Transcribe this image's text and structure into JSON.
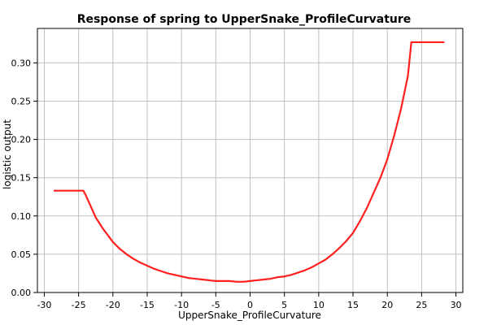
{
  "chart_data": {
    "type": "line",
    "title": "Response of spring to UpperSnake_ProfileCurvature",
    "xlabel": "UpperSnake_ProfileCurvature",
    "ylabel": "logistic output",
    "xlim": [
      -31,
      31
    ],
    "ylim": [
      0,
      0.345
    ],
    "xticks": [
      -30,
      -25,
      -20,
      -15,
      -10,
      -5,
      0,
      5,
      10,
      15,
      20,
      25,
      30
    ],
    "yticks": [
      0.0,
      0.05,
      0.1,
      0.15,
      0.2,
      0.25,
      0.3
    ],
    "ytick_labels": [
      "0.00",
      "0.05",
      "0.10",
      "0.15",
      "0.20",
      "0.25",
      "0.30"
    ],
    "grid": true,
    "legend": "none",
    "series": [
      {
        "color": "#ff2020",
        "x": [
          -28.5,
          -27,
          -26,
          -25,
          -24.3,
          -24,
          -23.5,
          -23,
          -22.5,
          -22,
          -21.5,
          -21,
          -20.5,
          -20,
          -19,
          -18,
          -17,
          -16,
          -15,
          -14,
          -13,
          -12,
          -11,
          -10,
          -9,
          -8,
          -7,
          -6,
          -5,
          -4,
          -3,
          -2,
          -1,
          0,
          1,
          2,
          3,
          4,
          5,
          6,
          7,
          8,
          9,
          10,
          11,
          12,
          13,
          14,
          15,
          16,
          17,
          18,
          19,
          20,
          21,
          22,
          23,
          23.5,
          25,
          26.5,
          28.2
        ],
        "y": [
          0.133,
          0.133,
          0.133,
          0.133,
          0.133,
          0.128,
          0.118,
          0.108,
          0.098,
          0.091,
          0.084,
          0.078,
          0.072,
          0.066,
          0.057,
          0.05,
          0.044,
          0.039,
          0.035,
          0.031,
          0.028,
          0.025,
          0.023,
          0.021,
          0.019,
          0.018,
          0.017,
          0.016,
          0.015,
          0.015,
          0.015,
          0.014,
          0.014,
          0.015,
          0.016,
          0.017,
          0.018,
          0.02,
          0.021,
          0.023,
          0.026,
          0.029,
          0.033,
          0.038,
          0.043,
          0.05,
          0.058,
          0.067,
          0.078,
          0.093,
          0.11,
          0.13,
          0.15,
          0.174,
          0.205,
          0.24,
          0.283,
          0.327,
          0.327,
          0.327,
          0.327
        ]
      }
    ]
  }
}
